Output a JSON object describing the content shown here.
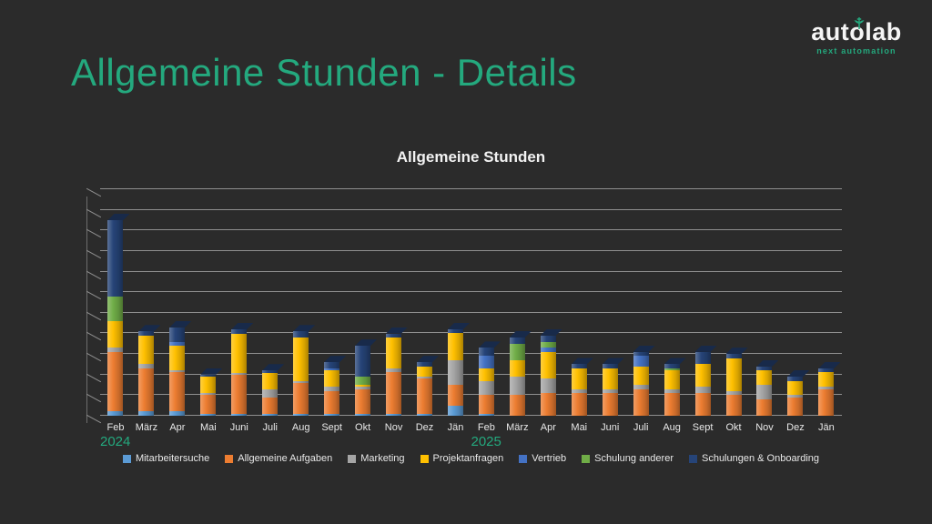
{
  "slide": {
    "title": "Allgemeine Stunden - Details"
  },
  "logo": {
    "text": "autolab",
    "subtitle": "next automation"
  },
  "colors": {
    "background": "#2b2b2b",
    "accent_green": "#24a97e",
    "gridline": "#8f8f8f",
    "text_light": "#e8e8e8"
  },
  "chart_data": {
    "type": "bar",
    "stacked": true,
    "title": "Allgemeine Stunden",
    "xlabel": "",
    "ylabel": "",
    "ylim": [
      0,
      110
    ],
    "gridline_interval": 10,
    "grid": true,
    "y_tick_labels_visible": false,
    "legend_position": "bottom",
    "categories": [
      "Feb",
      "März",
      "Apr",
      "Mai",
      "Juni",
      "Juli",
      "Aug",
      "Sept",
      "Okt",
      "Nov",
      "Dez",
      "Jän",
      "Feb",
      "März",
      "Apr",
      "Mai",
      "Juni",
      "Juli",
      "Aug",
      "Sept",
      "Okt",
      "Nov",
      "Dez",
      "Jän"
    ],
    "year_markers": [
      {
        "label": "2024",
        "index": 0
      },
      {
        "label": "2025",
        "index": 12
      }
    ],
    "series": [
      {
        "name": "Mitarbeitersuche",
        "color": "#5B9BD5",
        "values": [
          2,
          2,
          2,
          1,
          1,
          1,
          1,
          1,
          1,
          1,
          1,
          5,
          1,
          0,
          0,
          0,
          0,
          0,
          0,
          0,
          0,
          0,
          0,
          0
        ]
      },
      {
        "name": "Allgemeine Aufgaben",
        "color": "#ED7D31",
        "values": [
          29,
          21,
          19,
          9,
          19,
          8,
          15,
          11,
          12,
          20,
          17,
          10,
          9,
          10,
          11,
          11,
          11,
          13,
          11,
          11,
          10,
          8,
          9,
          13
        ]
      },
      {
        "name": "Marketing",
        "color": "#A5A5A5",
        "values": [
          2,
          2,
          1,
          1,
          1,
          4,
          1,
          2,
          1,
          2,
          1,
          12,
          7,
          9,
          7,
          2,
          2,
          2,
          2,
          3,
          2,
          7,
          1,
          1
        ]
      },
      {
        "name": "Projektanfragen",
        "color": "#FFC000",
        "values": [
          13,
          14,
          12,
          8,
          19,
          8,
          21,
          8,
          1,
          15,
          5,
          13,
          6,
          8,
          13,
          10,
          10,
          9,
          9,
          11,
          16,
          7,
          7,
          7
        ]
      },
      {
        "name": "Vertrieb",
        "color": "#4472C4",
        "values": [
          0,
          0,
          2,
          0,
          0,
          0,
          0,
          1,
          0,
          0,
          0,
          0,
          6,
          0,
          2,
          0,
          0,
          5,
          0,
          0,
          0,
          0,
          0,
          0
        ]
      },
      {
        "name": "Schulung anderer",
        "color": "#70AD47",
        "values": [
          12,
          0,
          0,
          0,
          0,
          0,
          0,
          0,
          4,
          0,
          0,
          0,
          0,
          8,
          3,
          0,
          0,
          0,
          1,
          0,
          0,
          0,
          0,
          0
        ]
      },
      {
        "name": "Schulungen & Onboarding",
        "color": "#264478",
        "values": [
          37,
          2,
          7,
          1,
          2,
          1,
          3,
          3,
          15,
          2,
          2,
          2,
          4,
          3,
          3,
          2,
          2,
          2,
          2,
          6,
          2,
          2,
          2,
          2
        ]
      }
    ]
  }
}
